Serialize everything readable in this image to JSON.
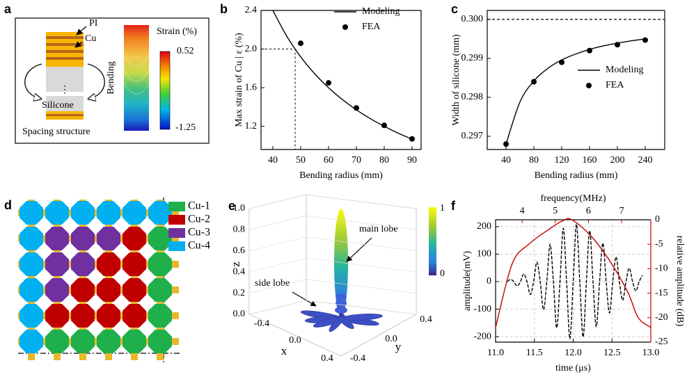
{
  "panel_a": {
    "label": "a",
    "pi": "PI",
    "cu": "Cu",
    "bending": "Bending",
    "silicone": "Silicone",
    "caption": "Spacing structure",
    "colorbar_title": "Strain (%)",
    "colorbar_max": "0.52",
    "colorbar_min": "-1.25"
  },
  "chart_data": [
    {
      "panel": "b",
      "type": "line",
      "xlabel": "Bending radius (mm)",
      "ylabel": "Max strain of Cu | ε (%)",
      "xlim": [
        35.75,
        93.25
      ],
      "xticks": [
        40,
        50,
        60,
        70,
        80,
        90
      ],
      "ylim": [
        0.96,
        2.4
      ],
      "yticks": [
        1.2,
        1.6,
        {
          "value": 2,
          "label": "2.0"
        },
        2.4
      ],
      "legend": "upper right",
      "guide": {
        "x": 48,
        "y": 2
      },
      "series": [
        {
          "name": "Modeling",
          "style": "line",
          "color": "#000000",
          "x": [
            40,
            45,
            50,
            55,
            60,
            65,
            70,
            75,
            80,
            85,
            90
          ],
          "values": [
            2.4,
            2.133,
            1.92,
            1.745,
            1.6,
            1.477,
            1.371,
            1.28,
            1.2,
            1.129,
            1.067
          ]
        },
        {
          "name": "FEA",
          "style": "marker",
          "color": "#000000",
          "x": [
            50,
            60,
            70,
            80,
            90
          ],
          "values": [
            2.06,
            1.65,
            1.39,
            1.21,
            1.07
          ]
        }
      ]
    },
    {
      "panel": "c",
      "type": "line",
      "xlabel": "Bending radius (mm)",
      "ylabel": "Width of silicone (mm)",
      "xlim": [
        13,
        268
      ],
      "xticks": [
        40,
        80,
        120,
        160,
        200,
        240
      ],
      "ylim": [
        0.29666,
        0.30023
      ],
      "yticks": [
        0.297,
        0.298,
        0.299,
        {
          "value": 0.3,
          "label": "0.300"
        }
      ],
      "legend": "center right",
      "reference": 0.3,
      "series": [
        {
          "name": "Modeling",
          "style": "line",
          "color": "#000000",
          "x": [
            40,
            60,
            80,
            100,
            120,
            140,
            160,
            180,
            200,
            220,
            240
          ],
          "values": [
            0.2968,
            0.29788,
            0.29842,
            0.29874,
            0.29896,
            0.29911,
            0.29923,
            0.29932,
            0.29939,
            0.29945,
            0.2995
          ]
        },
        {
          "name": "FEA",
          "style": "marker",
          "color": "#000000",
          "x": [
            40,
            80,
            120,
            160,
            200,
            240
          ],
          "values": [
            0.2968,
            0.2984,
            0.2989,
            0.2992,
            0.29935,
            0.29947
          ]
        }
      ]
    },
    {
      "panel": "f",
      "type": "line",
      "xlabel": "time (μs)",
      "ylabel": "amplitude(mV)",
      "x2label": "frequency(MHz)",
      "y2label": "relative amplitude (dB)",
      "xlim": [
        11,
        13
      ],
      "xticks": [
        {
          "value": 11,
          "label": "11.0"
        },
        11.5,
        {
          "value": 12,
          "label": "12.0"
        },
        12.5,
        {
          "value": 13,
          "label": "13.0"
        }
      ],
      "x2lim": [
        3.2,
        7.88
      ],
      "x2ticks": [
        4,
        5,
        6,
        7
      ],
      "ylim": [
        -220,
        225
      ],
      "yticks": [
        200,
        100,
        0,
        -100,
        -200
      ],
      "y2lim": [
        -25,
        0
      ],
      "y2ticks": [
        0,
        -5,
        -10,
        -15,
        -20,
        -25
      ],
      "grid": true,
      "series": [
        {
          "style": "line",
          "dash": true,
          "color": "#000000",
          "x": [
            11.15,
            11.1925,
            11.235,
            11.2775,
            11.32,
            11.3625,
            11.405,
            11.4475,
            11.49,
            11.5325,
            11.575,
            11.6175,
            11.66,
            11.7025,
            11.745,
            11.7875,
            11.83,
            11.8725,
            11.915,
            11.9575,
            12.0,
            12.0425,
            12.085,
            12.1275,
            12.17,
            12.2125,
            12.255,
            12.2975,
            12.34,
            12.3825,
            12.425,
            12.4675,
            12.51,
            12.5525,
            12.595,
            12.6375,
            12.68,
            12.7225,
            12.765,
            12.8075,
            12.85,
            12.8925
          ],
          "values": [
            0,
            8,
            0,
            -16,
            0,
            28,
            0,
            -47,
            0,
            71,
            0,
            -102,
            0,
            136,
            0,
            -168,
            0,
            194,
            0,
            -208,
            0,
            209,
            0,
            -201,
            0,
            185,
            0,
            -164,
            0,
            140,
            0,
            -114,
            0,
            90,
            0,
            -68,
            0,
            49,
            0,
            -34,
            0,
            23
          ]
        },
        {
          "style": "line",
          "color": "#c00000",
          "axis": "y2",
          "x": [
            3.2,
            3.7,
            4.2,
            4.8,
            5.2,
            5.5,
            6.1,
            6.7,
            7.2,
            7.5,
            7.88
          ],
          "values": [
            -22,
            -9,
            -5,
            -2,
            -0.3,
            0,
            -3.5,
            -9,
            -15,
            -20,
            -22
          ]
        }
      ]
    }
  ],
  "panel_d": {
    "label": "d",
    "legend": [
      {
        "name": "Cu-1",
        "color": "#1fb04b"
      },
      {
        "name": "Cu-2",
        "color": "#c00000"
      },
      {
        "name": "Cu-3",
        "color": "#7030a0"
      },
      {
        "name": "Cu-4",
        "color": "#00b0f0"
      }
    ]
  },
  "panel_e": {
    "label": "e",
    "main": "main lobe",
    "side": "side lobe",
    "zlabel": "z",
    "xlabel": "x",
    "ylabel": "y",
    "zticks": [
      "0.0",
      "0.2",
      "0.4",
      "0.6",
      "0.8",
      "1.0"
    ],
    "xticks": [
      "-0.4",
      "0.0",
      "0.4"
    ],
    "yticks": [
      "-0.4",
      "0.0",
      "0.4"
    ],
    "colorbar_max": "1",
    "colorbar_min": "0"
  }
}
